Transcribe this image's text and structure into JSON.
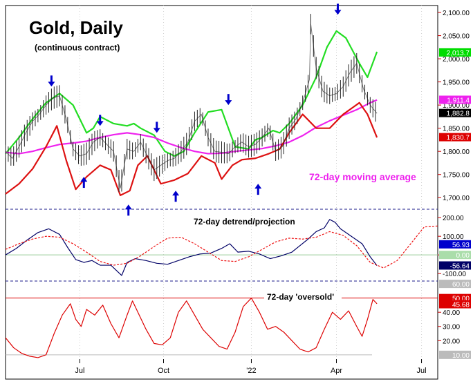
{
  "chart_data": [
    {
      "type": "line",
      "panel": "price",
      "title": "Gold, Daily",
      "subtitle": "(continuous contract)",
      "annotation": "72-day moving average",
      "x_tick_labels": [
        "Jul",
        "Oct",
        "'22",
        "Apr",
        "Jul"
      ],
      "y_tick_labels": [
        "1,700.00",
        "1,750.00",
        "1,800.00",
        "1,850.00",
        "1,900.00",
        "1,950.00",
        "2,000.00",
        "2,050.00",
        "2,100.00"
      ],
      "ylim": [
        1675,
        2115
      ],
      "value_labels": [
        {
          "text": "2,013.7",
          "value": 2013.7,
          "color": "#00dd00",
          "text_color": "#ffffff"
        },
        {
          "text": "1,911.4",
          "value": 1911.4,
          "color": "#ee22ee",
          "text_color": "#ffffff"
        },
        {
          "text": "1,882.8",
          "value": 1882.8,
          "color": "#000000",
          "text_color": "#ffffff"
        },
        {
          "text": "1,830.7",
          "value": 1830.7,
          "color": "#dd0000",
          "text_color": "#ffffff"
        }
      ],
      "series": [
        {
          "name": "Upper band",
          "color": "#22dd22",
          "x": [
            0,
            10,
            20,
            30,
            40,
            50,
            60,
            65,
            70,
            80,
            90,
            95,
            100,
            110,
            118,
            125,
            132,
            140,
            150,
            160,
            170,
            180,
            185,
            190,
            198,
            203,
            210,
            220,
            230,
            238,
            245,
            252,
            262,
            268,
            275
          ],
          "values": [
            1795,
            1830,
            1870,
            1905,
            1925,
            1900,
            1840,
            1850,
            1875,
            1860,
            1855,
            1860,
            1850,
            1835,
            1800,
            1790,
            1800,
            1840,
            1885,
            1890,
            1810,
            1805,
            1825,
            1830,
            1845,
            1840,
            1860,
            1900,
            1960,
            2025,
            2060,
            2045,
            1990,
            1960,
            2015
          ]
        },
        {
          "name": "72-day moving average",
          "color": "#ee22ee",
          "x": [
            0,
            10,
            20,
            30,
            40,
            50,
            60,
            70,
            80,
            90,
            100,
            110,
            120,
            130,
            140,
            150,
            160,
            170,
            180,
            190,
            200,
            210,
            220,
            230,
            240,
            250,
            260,
            270,
            275
          ],
          "values": [
            1798,
            1795,
            1800,
            1808,
            1815,
            1818,
            1822,
            1830,
            1836,
            1840,
            1836,
            1830,
            1818,
            1808,
            1800,
            1795,
            1796,
            1800,
            1803,
            1806,
            1812,
            1820,
            1834,
            1852,
            1866,
            1878,
            1890,
            1905,
            1911
          ]
        },
        {
          "name": "Lower band",
          "color": "#dd1111",
          "x": [
            0,
            10,
            20,
            30,
            38,
            45,
            52,
            60,
            70,
            78,
            85,
            92,
            98,
            105,
            115,
            125,
            135,
            145,
            155,
            160,
            168,
            175,
            185,
            195,
            203,
            210,
            220,
            230,
            240,
            250,
            262,
            268,
            275
          ],
          "values": [
            1708,
            1730,
            1762,
            1810,
            1855,
            1780,
            1718,
            1745,
            1770,
            1760,
            1705,
            1715,
            1770,
            1790,
            1730,
            1738,
            1752,
            1790,
            1775,
            1740,
            1770,
            1782,
            1785,
            1795,
            1805,
            1840,
            1880,
            1850,
            1850,
            1880,
            1905,
            1880,
            1830
          ]
        },
        {
          "name": "Gold price (daily bars)",
          "color": "#222222",
          "x": [
            0,
            5,
            10,
            15,
            20,
            25,
            30,
            35,
            40,
            45,
            50,
            55,
            60,
            65,
            70,
            75,
            80,
            85,
            90,
            95,
            100,
            105,
            110,
            115,
            120,
            125,
            130,
            135,
            140,
            145,
            150,
            155,
            160,
            165,
            170,
            175,
            180,
            185,
            190,
            195,
            200,
            205,
            210,
            215,
            220,
            225,
            226,
            230,
            235,
            240,
            245,
            250,
            255,
            260,
            265,
            270,
            275
          ],
          "values": [
            1800,
            1785,
            1810,
            1840,
            1865,
            1880,
            1900,
            1915,
            1920,
            1870,
            1805,
            1790,
            1795,
            1820,
            1830,
            1815,
            1800,
            1720,
            1805,
            1800,
            1820,
            1790,
            1760,
            1770,
            1780,
            1785,
            1800,
            1820,
            1865,
            1880,
            1830,
            1800,
            1798,
            1795,
            1810,
            1820,
            1810,
            1815,
            1830,
            1850,
            1800,
            1810,
            1850,
            1870,
            1905,
            1955,
            2075,
            1980,
            1930,
            1920,
            1925,
            1940,
            1970,
            1990,
            1935,
            1900,
            1882
          ]
        }
      ],
      "arrows": [
        {
          "direction": "down",
          "x": 34,
          "value": 1940
        },
        {
          "direction": "up",
          "x": 58,
          "value": 1745
        },
        {
          "direction": "down",
          "x": 70,
          "value": 1855
        },
        {
          "direction": "up",
          "x": 91,
          "value": 1685
        },
        {
          "direction": "down",
          "x": 112,
          "value": 1840
        },
        {
          "direction": "up",
          "x": 126,
          "value": 1715
        },
        {
          "direction": "down",
          "x": 165,
          "value": 1900
        },
        {
          "direction": "up",
          "x": 187,
          "value": 1730
        },
        {
          "direction": "down",
          "x": 246,
          "value": 2095
        }
      ]
    },
    {
      "type": "line",
      "panel": "detrend",
      "title": "72-day detrend/projection",
      "y_tick_labels": [
        "-100.00",
        "0.00",
        "100.00",
        "200.00"
      ],
      "ylim": [
        -140,
        245
      ],
      "value_labels": [
        {
          "text": "56.93",
          "value": 56.93,
          "color": "#0000cc",
          "text_color": "#ffffff"
        },
        {
          "text": "0.00",
          "value": 0,
          "color": "#aaddaa",
          "text_color": "#ffffff"
        },
        {
          "text": "-56.64",
          "value": -56.64,
          "color": "#000066",
          "text_color": "#ffffff"
        }
      ],
      "series": [
        {
          "name": "72-day detrend",
          "color": "#000066",
          "x": [
            0,
            8,
            16,
            24,
            32,
            40,
            46,
            52,
            58,
            64,
            70,
            78,
            86,
            90,
            96,
            104,
            112,
            120,
            128,
            136,
            144,
            152,
            160,
            166,
            172,
            180,
            188,
            196,
            204,
            212,
            218,
            224,
            230,
            236,
            240,
            244,
            248,
            252,
            258,
            264,
            270,
            275
          ],
          "values": [
            0,
            35,
            80,
            120,
            140,
            110,
            40,
            -25,
            -40,
            -30,
            -55,
            -55,
            -110,
            -40,
            -20,
            -30,
            -45,
            -50,
            -30,
            -10,
            5,
            10,
            35,
            60,
            15,
            20,
            5,
            -20,
            -5,
            15,
            50,
            85,
            125,
            145,
            190,
            175,
            140,
            120,
            90,
            60,
            -10,
            -57
          ]
        },
        {
          "name": "72-day projection",
          "color": "#ee1111",
          "dashed": true,
          "x": [
            0,
            10,
            20,
            30,
            40,
            50,
            60,
            70,
            80,
            90,
            100,
            110,
            120,
            130,
            140,
            150,
            160,
            170,
            180,
            190,
            200,
            210,
            220,
            230,
            240,
            250,
            260,
            270,
            280,
            290,
            300,
            310,
            320
          ],
          "values": [
            30,
            60,
            85,
            100,
            95,
            60,
            15,
            -35,
            -55,
            -45,
            -5,
            45,
            90,
            95,
            60,
            15,
            -30,
            -35,
            -10,
            30,
            70,
            90,
            85,
            95,
            125,
            105,
            50,
            -40,
            -70,
            -30,
            60,
            150,
            155
          ]
        }
      ],
      "reference_lines": [
        0
      ]
    },
    {
      "type": "line",
      "panel": "oversold",
      "title": "72-day 'oversold'",
      "y_tick_labels": [
        "20.00",
        "30.00",
        "40.00"
      ],
      "ylim": [
        7,
        62
      ],
      "value_labels": [
        {
          "text": "60.00",
          "value": 60,
          "color": "#bbbbbb",
          "text_color": "#ffffff"
        },
        {
          "text": "50.00",
          "value": 50,
          "color": "#dd0000",
          "text_color": "#ffffff"
        },
        {
          "text": "45.68",
          "value": 45.68,
          "color": "#dd0000",
          "text_color": "#ffffff"
        },
        {
          "text": "10.00",
          "value": 10,
          "color": "#bbbbbb",
          "text_color": "#ffffff"
        }
      ],
      "series": [
        {
          "name": "72-day oversold",
          "color": "#dd0000",
          "x": [
            0,
            6,
            12,
            18,
            24,
            30,
            36,
            42,
            48,
            52,
            56,
            60,
            66,
            72,
            78,
            84,
            90,
            94,
            98,
            104,
            110,
            116,
            122,
            128,
            134,
            140,
            146,
            152,
            158,
            164,
            170,
            176,
            182,
            188,
            194,
            200,
            206,
            212,
            218,
            224,
            230,
            236,
            242,
            248,
            254,
            260,
            264,
            268,
            272,
            275
          ],
          "values": [
            22,
            15,
            11,
            9,
            8,
            10,
            25,
            38,
            46,
            35,
            30,
            42,
            38,
            45,
            32,
            22,
            38,
            48,
            40,
            28,
            18,
            17,
            22,
            40,
            48,
            38,
            28,
            22,
            16,
            14,
            26,
            44,
            50,
            40,
            28,
            30,
            26,
            20,
            14,
            12,
            15,
            28,
            40,
            35,
            41,
            30,
            23,
            35,
            49,
            46
          ]
        }
      ],
      "reference_lines": [
        50,
        10
      ]
    }
  ]
}
